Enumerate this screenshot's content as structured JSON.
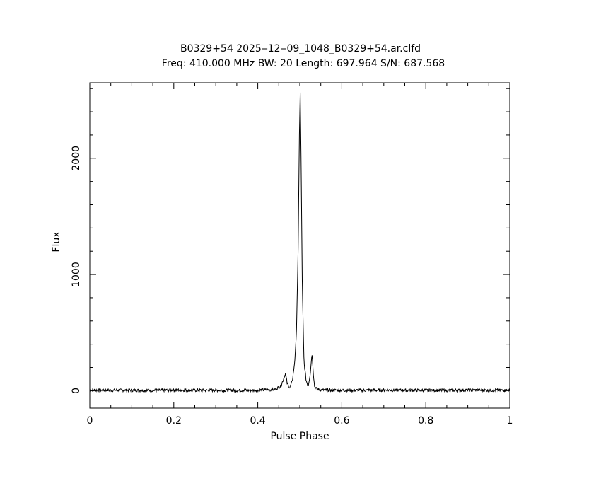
{
  "chart_data": {
    "type": "line",
    "title": "B0329+54 2025‒12‒09_1048_B0329+54.ar.clfd",
    "subtitle": "Freq: 410.000 MHz BW: 20 Length: 697.964 S/N: 687.568",
    "xlabel": "Pulse Phase",
    "ylabel": "Flux",
    "xlim": [
      0,
      1
    ],
    "ylim": [
      -150,
      2650
    ],
    "x_ticks": [
      0,
      0.2,
      0.4,
      0.6,
      0.8,
      1
    ],
    "x_tick_labels": [
      "0",
      "0.2",
      "0.4",
      "0.6",
      "0.8",
      "1"
    ],
    "y_ticks": [
      0,
      1000,
      2000
    ],
    "y_tick_labels": [
      "0",
      "1000",
      "2000"
    ],
    "grid": false,
    "legend": "none",
    "line_color": "#000000",
    "series": [
      {
        "x": [
          0,
          0.05,
          0.1,
          0.15,
          0.2,
          0.25,
          0.3,
          0.35,
          0.4,
          0.44,
          0.455,
          0.462,
          0.466,
          0.47,
          0.476,
          0.482,
          0.488,
          0.492,
          0.496,
          0.499,
          0.501,
          0.503,
          0.506,
          0.51,
          0.515,
          0.52,
          0.525,
          0.529,
          0.532,
          0.535,
          0.54,
          0.55,
          0.6,
          0.65,
          0.7,
          0.75,
          0.8,
          0.85,
          0.9,
          0.95,
          1
        ],
        "values": [
          5,
          3,
          4,
          2,
          6,
          3,
          4,
          2,
          5,
          10,
          40,
          110,
          150,
          60,
          25,
          80,
          250,
          500,
          1200,
          2200,
          2570,
          2000,
          900,
          250,
          90,
          40,
          150,
          320,
          160,
          40,
          15,
          6,
          4,
          3,
          5,
          3,
          4,
          2,
          5,
          3,
          4
        ]
      }
    ]
  }
}
